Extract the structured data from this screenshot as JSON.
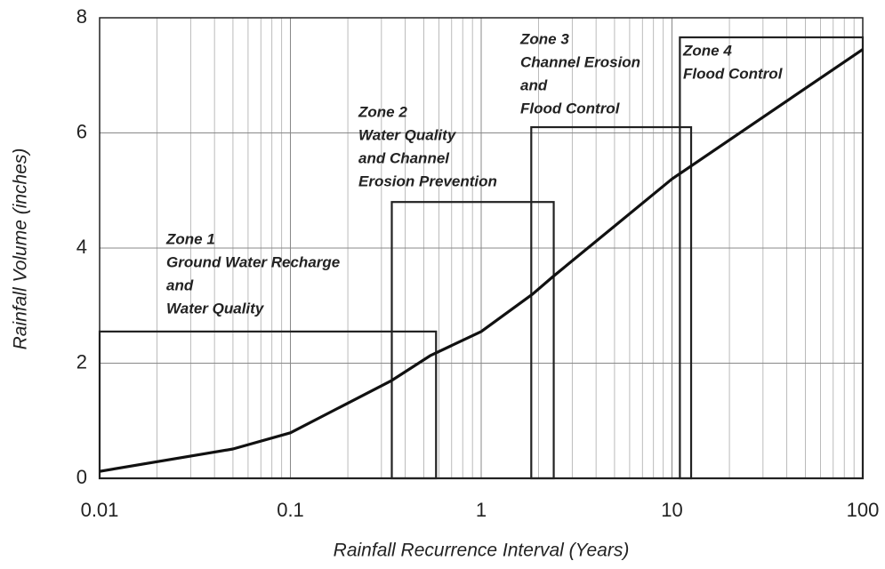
{
  "chart_data": {
    "type": "line",
    "x_label": "Rainfall Recurrence Interval (Years)",
    "y_label": "Rainfall Volume (inches)",
    "x_log": true,
    "grid": true,
    "x": [
      0.01,
      0.05,
      0.1,
      0.34,
      0.54,
      1,
      1.86,
      2.37,
      10,
      100
    ],
    "series": [
      {
        "color": "#111111",
        "values": [
          0.12,
          0.51,
          0.79,
          1.7,
          2.13,
          2.55,
          3.2,
          3.5,
          5.2,
          7.45
        ]
      }
    ],
    "xlim": [
      0.01,
      100
    ],
    "xticks": [
      0.01,
      0.1,
      1,
      10,
      100
    ],
    "ylim": [
      0,
      8
    ],
    "yticks": [
      0,
      2,
      4,
      6,
      8
    ],
    "zones": [
      {
        "label": [
          "Zone 1",
          "Ground Water Recharge",
          "and",
          "Water Quality"
        ],
        "x": [
          0.01,
          0.58
        ],
        "height": 2.55
      },
      {
        "label": [
          "Zone 2",
          "Water Quality",
          "and Channel",
          "Erosion Prevention"
        ],
        "x": [
          0.34,
          2.4
        ],
        "height": 4.8
      },
      {
        "label": [
          "Zone 3",
          "Channel Erosion",
          "and",
          "Flood Control"
        ],
        "x": [
          1.83,
          12.6
        ],
        "height": 6.1
      },
      {
        "label": [
          "Zone 4",
          "Flood Control"
        ],
        "x": [
          11,
          100
        ],
        "height": 7.66
      }
    ]
  }
}
